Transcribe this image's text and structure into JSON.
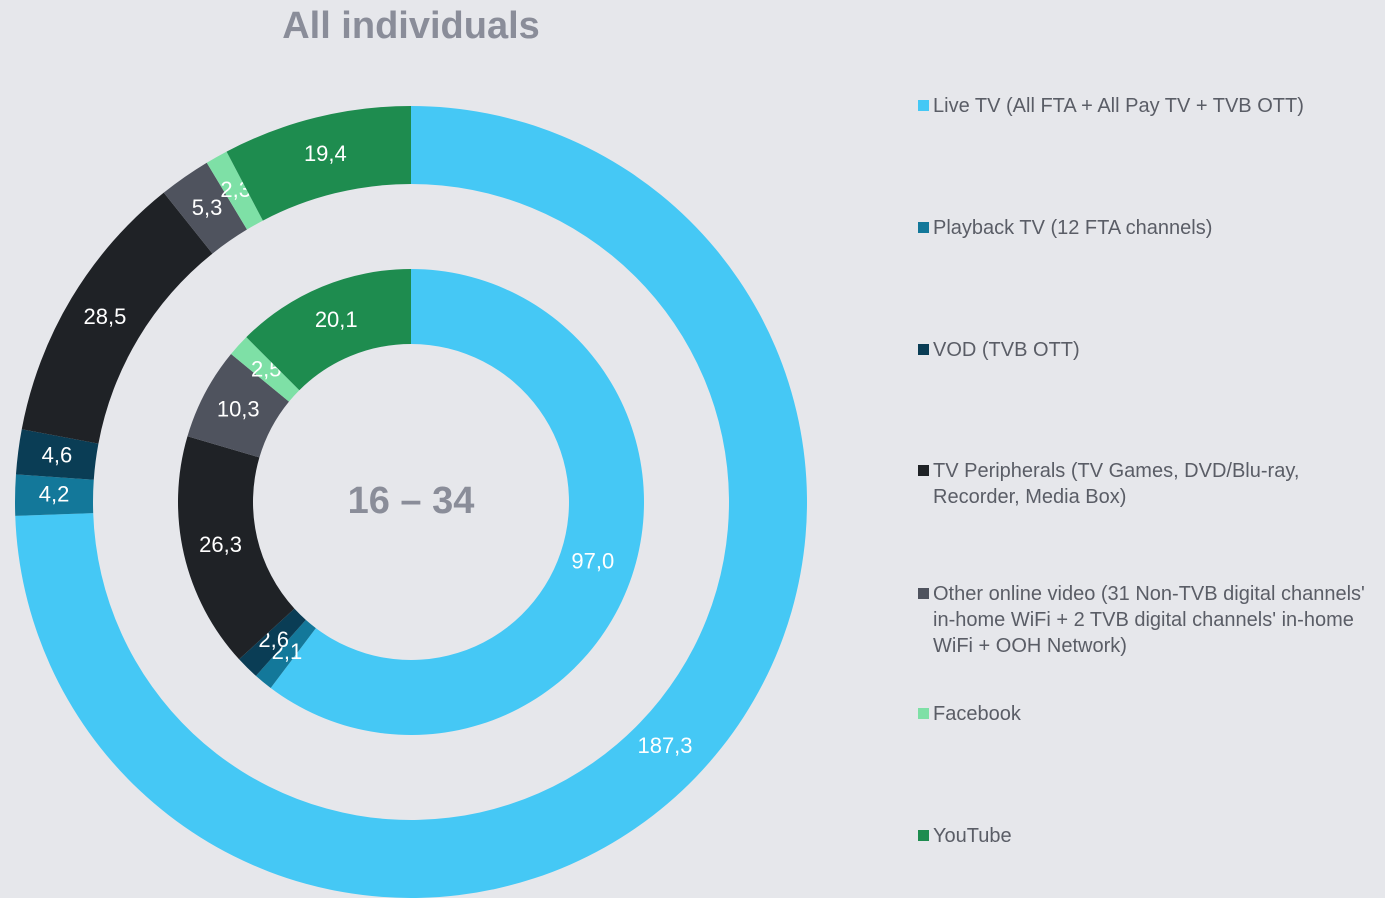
{
  "chart_data": {
    "type": "donut",
    "categories": [
      "Live TV (All FTA + All Pay TV + TVB OTT)",
      "Playback TV (12 FTA channels)",
      "VOD (TVB OTT)",
      "TV Peripherals (TV Games, DVD/Blu-ray, Recorder, Media Box)",
      "Other online video (31 Non-TVB digital channels' in-home WiFi + 2 TVB digital channels' in-home WiFi + OOH Network)",
      "Facebook",
      "YouTube"
    ],
    "colors": [
      "#45c8f5",
      "#13789a",
      "#0a3d55",
      "#1f2226",
      "#4f535e",
      "#7ee0a6",
      "#1e8c4f"
    ],
    "series": [
      {
        "name": "All individuals",
        "values": [
          187.3,
          4.2,
          4.6,
          28.5,
          5.3,
          2.3,
          19.4
        ],
        "value_labels": [
          "187,3",
          "4,2",
          "4,6",
          "28,5",
          "5,3",
          "2,3",
          "19,4"
        ]
      },
      {
        "name": "16 – 34",
        "values": [
          97.0,
          2.1,
          2.6,
          26.3,
          10.3,
          2.5,
          20.1
        ],
        "value_labels": [
          "97,0",
          "2,1",
          "2,6",
          "26,3",
          "10,3",
          "2,5",
          "20,1"
        ]
      }
    ]
  }
}
